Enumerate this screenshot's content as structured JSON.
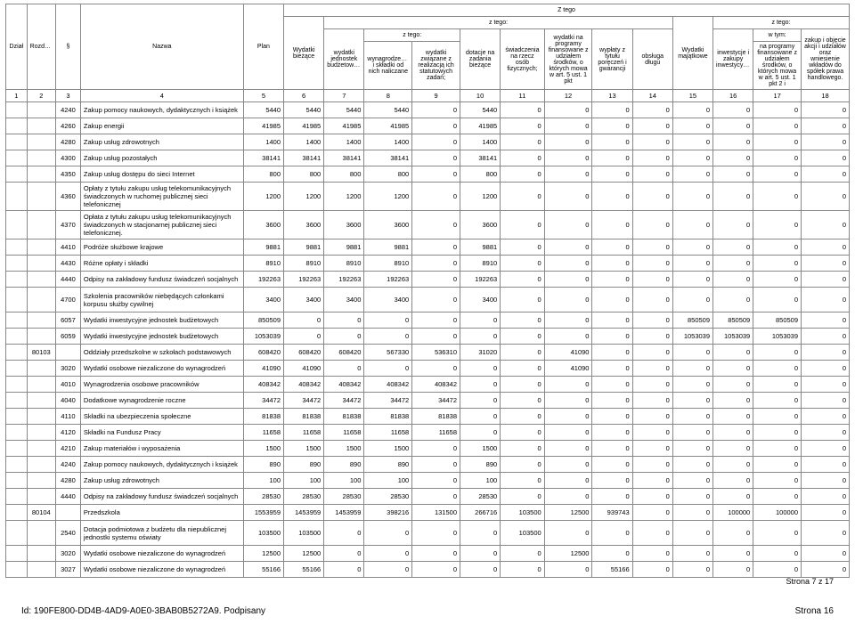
{
  "header": {
    "ztego_top": "Z tego",
    "ztego": "z tego:",
    "wtym": "w tym:",
    "cols": {
      "c1": "Dział",
      "c2": "Rozdział",
      "c3": "§",
      "c4": "Nazwa",
      "c5": "Plan",
      "c6": "Wydatki bieżące",
      "c7": "wydatki jednostek budżetowych,",
      "c8": "wynagrodzenia i składki od nich naliczane",
      "c9": "wydatki związane z realizacją ich statutowych zadań;",
      "c10": "dotacje na zadania bieżące",
      "c11": "świadczenia na rzecz osób fizycznych;",
      "c12": "wydatki na programy finansowane z udziałem środków, o których mowa w art. 5 ust. 1 pkt",
      "c13": "wypłaty z tytułu poręczeń i gwarancji",
      "c14": "obsługa długu",
      "c15": "Wydatki majątkowe",
      "c16": "inwestycje i zakupy inwestycyjne",
      "c17": "na programy finansowane z udziałem środków, o których mowa w art. 5 ust. 1 pkt 2 i",
      "c18": "zakup i objęcie akcji i udziałów oraz wniesienie wkładów do spółek prawa handlowego."
    },
    "nums": [
      "1",
      "2",
      "3",
      "4",
      "5",
      "6",
      "7",
      "8",
      "9",
      "10",
      "11",
      "12",
      "13",
      "14",
      "15",
      "16",
      "17",
      "18"
    ]
  },
  "rows": [
    {
      "r2": "",
      "r3": "4240",
      "r4": "Zakup pomocy naukowych, dydaktycznych i książek",
      "v": [
        "5440",
        "5440",
        "5440",
        "5440",
        "0",
        "5440",
        "0",
        "0",
        "0",
        "0",
        "0",
        "0",
        "0",
        "0",
        "0"
      ]
    },
    {
      "r2": "",
      "r3": "4260",
      "r4": "Zakup energii",
      "v": [
        "41985",
        "41985",
        "41985",
        "41985",
        "0",
        "41985",
        "0",
        "0",
        "0",
        "0",
        "0",
        "0",
        "0",
        "0",
        "0"
      ]
    },
    {
      "r2": "",
      "r3": "4280",
      "r4": "Zakup usług zdrowotnych",
      "v": [
        "1400",
        "1400",
        "1400",
        "1400",
        "0",
        "1400",
        "0",
        "0",
        "0",
        "0",
        "0",
        "0",
        "0",
        "0",
        "0"
      ]
    },
    {
      "r2": "",
      "r3": "4300",
      "r4": "Zakup usług pozostałych",
      "v": [
        "38141",
        "38141",
        "38141",
        "38141",
        "0",
        "38141",
        "0",
        "0",
        "0",
        "0",
        "0",
        "0",
        "0",
        "0",
        "0"
      ]
    },
    {
      "r2": "",
      "r3": "4350",
      "r4": "Zakup usług dostępu do sieci Internet",
      "v": [
        "800",
        "800",
        "800",
        "800",
        "0",
        "800",
        "0",
        "0",
        "0",
        "0",
        "0",
        "0",
        "0",
        "0",
        "0"
      ]
    },
    {
      "tall": true,
      "r2": "",
      "r3": "4360",
      "r4": "Opłaty z tytułu zakupu usług telekomunikacyjnych świadczonych w ruchomej publicznej sieci telefonicznej",
      "v": [
        "1200",
        "1200",
        "1200",
        "1200",
        "0",
        "1200",
        "0",
        "0",
        "0",
        "0",
        "0",
        "0",
        "0",
        "0",
        "0"
      ]
    },
    {
      "tall": true,
      "r2": "",
      "r3": "4370",
      "r4": "Opłata z tytułu zakupu usług telekomunikacyjnych świadczonych w stacjonarnej publicznej sieci telefonicznej.",
      "v": [
        "3600",
        "3600",
        "3600",
        "3600",
        "0",
        "3600",
        "0",
        "0",
        "0",
        "0",
        "0",
        "0",
        "0",
        "0",
        "0"
      ]
    },
    {
      "r2": "",
      "r3": "4410",
      "r4": "Podróże służbowe krajowe",
      "v": [
        "9881",
        "9881",
        "9881",
        "9881",
        "0",
        "9881",
        "0",
        "0",
        "0",
        "0",
        "0",
        "0",
        "0",
        "0",
        "0"
      ]
    },
    {
      "r2": "",
      "r3": "4430",
      "r4": "Różne opłaty i składki",
      "v": [
        "8910",
        "8910",
        "8910",
        "8910",
        "0",
        "8910",
        "0",
        "0",
        "0",
        "0",
        "0",
        "0",
        "0",
        "0",
        "0"
      ]
    },
    {
      "r2": "",
      "r3": "4440",
      "r4": "Odpisy na zakładowy fundusz świadczeń socjalnych",
      "v": [
        "192263",
        "192263",
        "192263",
        "192263",
        "0",
        "192263",
        "0",
        "0",
        "0",
        "0",
        "0",
        "0",
        "0",
        "0",
        "0"
      ]
    },
    {
      "tall": true,
      "r2": "",
      "r3": "4700",
      "r4": "Szkolenia pracowników niebędących członkami korpusu służby cywilnej",
      "v": [
        "3400",
        "3400",
        "3400",
        "3400",
        "0",
        "3400",
        "0",
        "0",
        "0",
        "0",
        "0",
        "0",
        "0",
        "0",
        "0"
      ]
    },
    {
      "r2": "",
      "r3": "6057",
      "r4": "Wydatki inwestycyjne jednostek budżetowych",
      "v": [
        "850509",
        "0",
        "0",
        "0",
        "0",
        "0",
        "0",
        "0",
        "0",
        "0",
        "850509",
        "850509",
        "850509",
        "0"
      ],
      "skip8": true
    },
    {
      "r2": "",
      "r3": "6059",
      "r4": "Wydatki inwestycyjne jednostek budżetowych",
      "v": [
        "1053039",
        "0",
        "0",
        "0",
        "0",
        "0",
        "0",
        "0",
        "0",
        "0",
        "1053039",
        "1053039",
        "1053039",
        "0"
      ],
      "skip8": true
    },
    {
      "r2": "80103",
      "r3": "",
      "r4": "Oddziały przedszkolne w szkołach podstawowych",
      "v": [
        "608420",
        "608420",
        "608420",
        "567330",
        "536310",
        "31020",
        "0",
        "41090",
        "0",
        "0",
        "0",
        "0",
        "0",
        "0",
        "0"
      ]
    },
    {
      "r2": "",
      "r3": "3020",
      "r4": "Wydatki osobowe niezaliczone do wynagrodzeń",
      "v": [
        "41090",
        "41090",
        "0",
        "0",
        "0",
        "0",
        "0",
        "41090",
        "0",
        "0",
        "0",
        "0",
        "0",
        "0",
        "0"
      ]
    },
    {
      "r2": "",
      "r3": "4010",
      "r4": "Wynagrodzenia osobowe pracowników",
      "v": [
        "408342",
        "408342",
        "408342",
        "408342",
        "408342",
        "0",
        "0",
        "0",
        "0",
        "0",
        "0",
        "0",
        "0",
        "0",
        "0"
      ]
    },
    {
      "r2": "",
      "r3": "4040",
      "r4": "Dodatkowe wynagrodzenie roczne",
      "v": [
        "34472",
        "34472",
        "34472",
        "34472",
        "34472",
        "0",
        "0",
        "0",
        "0",
        "0",
        "0",
        "0",
        "0",
        "0",
        "0"
      ]
    },
    {
      "r2": "",
      "r3": "4110",
      "r4": "Składki na ubezpieczenia społeczne",
      "v": [
        "81838",
        "81838",
        "81838",
        "81838",
        "81838",
        "0",
        "0",
        "0",
        "0",
        "0",
        "0",
        "0",
        "0",
        "0",
        "0"
      ]
    },
    {
      "r2": "",
      "r3": "4120",
      "r4": "Składki na Fundusz Pracy",
      "v": [
        "11658",
        "11658",
        "11658",
        "11658",
        "11658",
        "0",
        "0",
        "0",
        "0",
        "0",
        "0",
        "0",
        "0",
        "0",
        "0"
      ]
    },
    {
      "r2": "",
      "r3": "4210",
      "r4": "Zakup materiałów i wyposażenia",
      "v": [
        "1500",
        "1500",
        "1500",
        "1500",
        "0",
        "1500",
        "0",
        "0",
        "0",
        "0",
        "0",
        "0",
        "0",
        "0",
        "0"
      ]
    },
    {
      "r2": "",
      "r3": "4240",
      "r4": "Zakup pomocy naukowych, dydaktycznych i książek",
      "v": [
        "890",
        "890",
        "890",
        "890",
        "0",
        "890",
        "0",
        "0",
        "0",
        "0",
        "0",
        "0",
        "0",
        "0",
        "0"
      ]
    },
    {
      "r2": "",
      "r3": "4280",
      "r4": "Zakup usług zdrowotnych",
      "v": [
        "100",
        "100",
        "100",
        "100",
        "0",
        "100",
        "0",
        "0",
        "0",
        "0",
        "0",
        "0",
        "0",
        "0",
        "0"
      ]
    },
    {
      "r2": "",
      "r3": "4440",
      "r4": "Odpisy na zakładowy fundusz świadczeń socjalnych",
      "v": [
        "28530",
        "28530",
        "28530",
        "28530",
        "0",
        "28530",
        "0",
        "0",
        "0",
        "0",
        "0",
        "0",
        "0",
        "0",
        "0"
      ]
    },
    {
      "r2": "80104",
      "r3": "",
      "r4": "Przedszkola",
      "v": [
        "1553959",
        "1453959",
        "1453959",
        "398216",
        "131500",
        "266716",
        "103500",
        "12500",
        "939743",
        "0",
        "0",
        "100000",
        "100000",
        "0",
        "0"
      ]
    },
    {
      "tall": true,
      "r2": "",
      "r3": "2540",
      "r4": "Dotacja podmiotowa z budżetu dla niepublicznej jednostki systemu oświaty",
      "v": [
        "103500",
        "103500",
        "0",
        "0",
        "0",
        "0",
        "103500",
        "0",
        "0",
        "0",
        "0",
        "0",
        "0",
        "0",
        "0"
      ]
    },
    {
      "r2": "",
      "r3": "3020",
      "r4": "Wydatki osobowe niezaliczone do wynagrodzeń",
      "v": [
        "12500",
        "12500",
        "0",
        "0",
        "0",
        "0",
        "0",
        "12500",
        "0",
        "0",
        "0",
        "0",
        "0",
        "0",
        "0"
      ]
    },
    {
      "r2": "",
      "r3": "3027",
      "r4": "Wydatki osobowe niezaliczone do wynagrodzeń",
      "v": [
        "55166",
        "55166",
        "0",
        "0",
        "0",
        "0",
        "0",
        "0",
        "55166",
        "0",
        "0",
        "0",
        "0",
        "0",
        "0"
      ]
    }
  ],
  "footer": {
    "strona_small": "Strona 7 z 17",
    "id": "Id: 190FE800-DD4B-4AD9-A0E0-3BAB0B5272A9. Podpisany",
    "strona": "Strona 16"
  },
  "colwidths": [
    "22",
    "30",
    "26",
    "170",
    "42",
    "42",
    "42",
    "50",
    "50",
    "42",
    "46",
    "50",
    "42",
    "42",
    "42",
    "42",
    "50",
    "50"
  ]
}
